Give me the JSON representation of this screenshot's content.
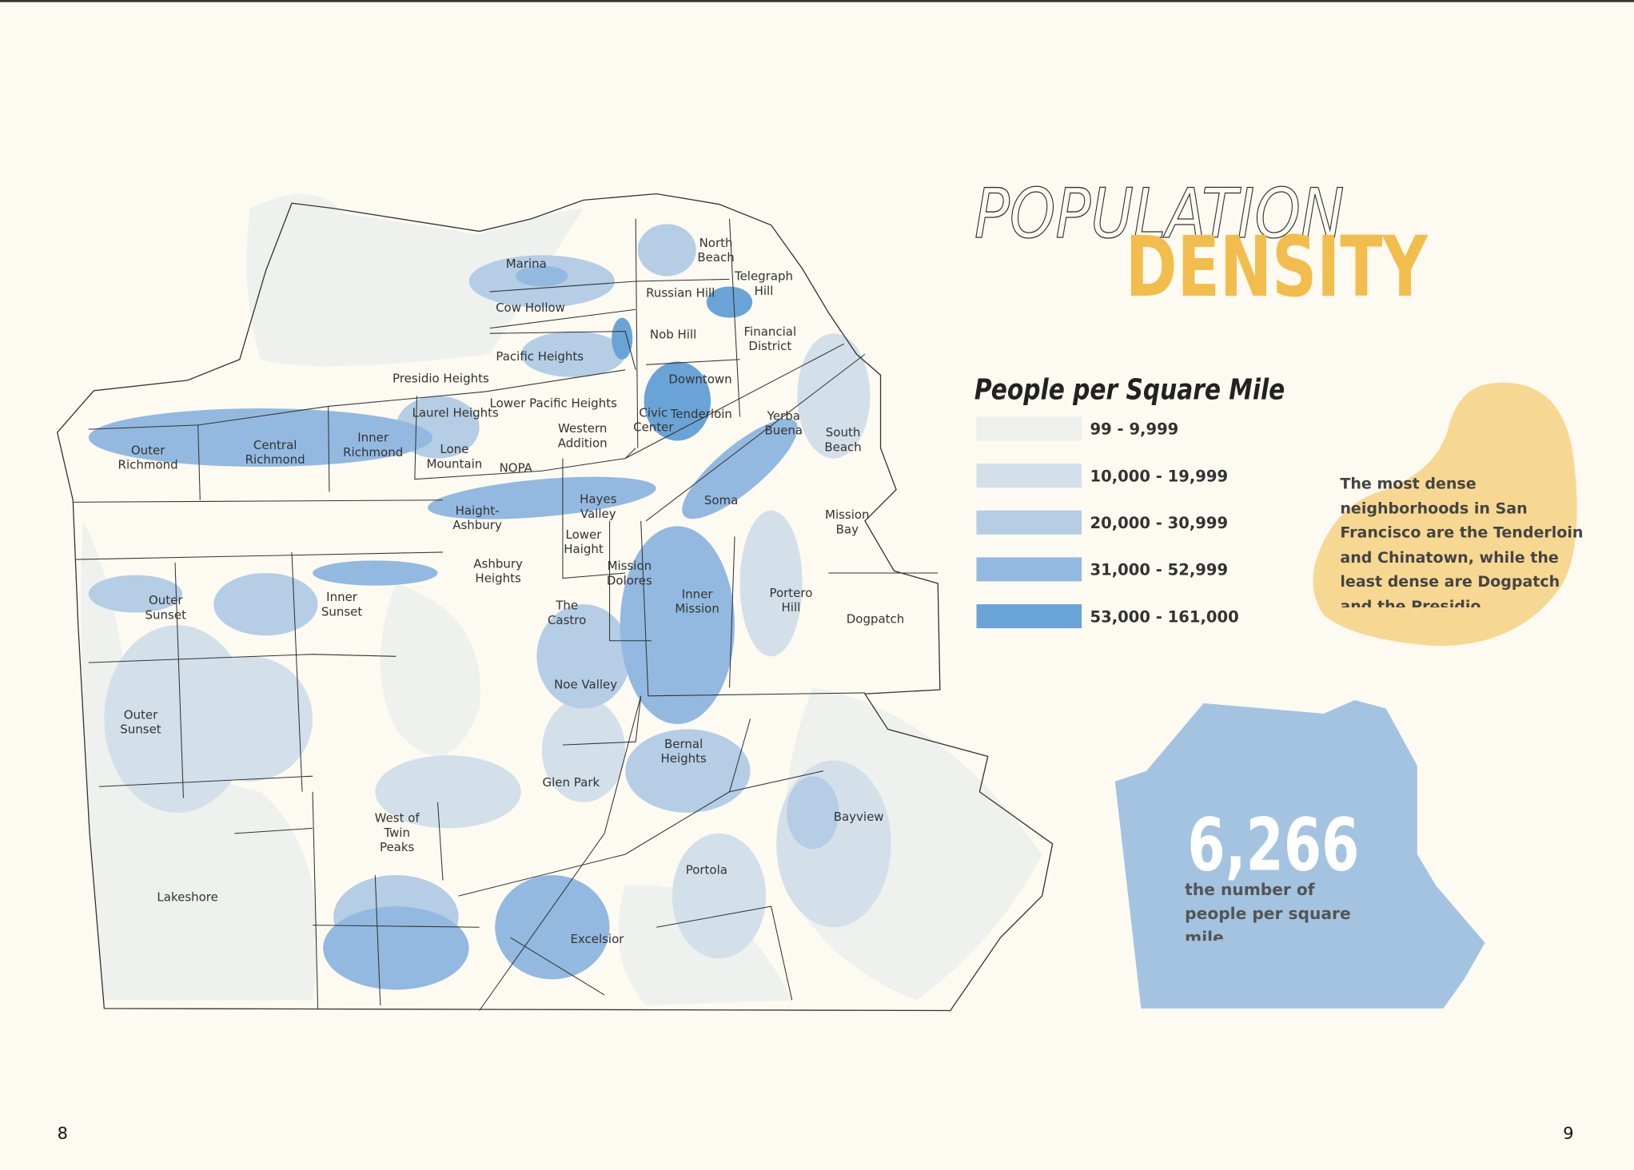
{
  "header": {
    "title_outline": "POPULATION",
    "title_fill": "DENSITY"
  },
  "legend": {
    "title": "People per Square Mile",
    "items": [
      {
        "label": "99 - 9,999",
        "color": "#edf0ec"
      },
      {
        "label": "10,000 - 19,999",
        "color": "#d3e0ea"
      },
      {
        "label": "20,000 - 30,999",
        "color": "#b5cde5"
      },
      {
        "label": "31,000 - 52,999",
        "color": "#93b9e0"
      },
      {
        "label": "53,000 - 161,000",
        "color": "#6aa4d6"
      }
    ]
  },
  "neighborhoods": [
    {
      "lines": [
        "Marina"
      ]
    },
    {
      "lines": [
        "Cow Hollow"
      ]
    },
    {
      "lines": [
        "Pacific Heights"
      ]
    },
    {
      "lines": [
        "Presidio Heights"
      ]
    },
    {
      "lines": [
        "Lower Pacific Heights"
      ]
    },
    {
      "lines": [
        "Laurel Heights"
      ]
    },
    {
      "lines": [
        "Inner",
        "Richmond"
      ]
    },
    {
      "lines": [
        "Central",
        "Richmond"
      ]
    },
    {
      "lines": [
        "Outer",
        "Richmond"
      ]
    },
    {
      "lines": [
        "Lone",
        "Mountain"
      ]
    },
    {
      "lines": [
        "NOPA"
      ]
    },
    {
      "lines": [
        "Western",
        "Addition"
      ]
    },
    {
      "lines": [
        "Civic",
        "Center"
      ]
    },
    {
      "lines": [
        "Tenderloin"
      ]
    },
    {
      "lines": [
        "Downtown"
      ]
    },
    {
      "lines": [
        "Nob Hill"
      ]
    },
    {
      "lines": [
        "Russian Hill"
      ]
    },
    {
      "lines": [
        "North",
        "Beach"
      ]
    },
    {
      "lines": [
        "Telegraph",
        "Hill"
      ]
    },
    {
      "lines": [
        "Financial",
        "District"
      ]
    },
    {
      "lines": [
        "Yerba",
        "Buena"
      ]
    },
    {
      "lines": [
        "South",
        "Beach"
      ]
    },
    {
      "lines": [
        "Soma"
      ]
    },
    {
      "lines": [
        "Mission",
        "Bay"
      ]
    },
    {
      "lines": [
        "Haight-",
        "Ashbury"
      ]
    },
    {
      "lines": [
        "Hayes",
        "Valley"
      ]
    },
    {
      "lines": [
        "Lower",
        "Haight"
      ]
    },
    {
      "lines": [
        "Ashbury",
        "Heights"
      ]
    },
    {
      "lines": [
        "Mission",
        "Dolores"
      ]
    },
    {
      "lines": [
        "The",
        "Castro"
      ]
    },
    {
      "lines": [
        "Inner",
        "Mission"
      ]
    },
    {
      "lines": [
        "Portero",
        "Hill"
      ]
    },
    {
      "lines": [
        "Dogpatch"
      ]
    },
    {
      "lines": [
        "Outer",
        "Sunset"
      ]
    },
    {
      "lines": [
        "Inner",
        "Sunset"
      ]
    },
    {
      "lines": [
        "Outer",
        "Sunset"
      ]
    },
    {
      "lines": [
        "Noe Valley"
      ]
    },
    {
      "lines": [
        "Bernal",
        "Heights"
      ]
    },
    {
      "lines": [
        "Glen Park"
      ]
    },
    {
      "lines": [
        "West of",
        "Twin",
        "Peaks"
      ]
    },
    {
      "lines": [
        "Bayview"
      ]
    },
    {
      "lines": [
        "Lakeshore"
      ]
    },
    {
      "lines": [
        "Portola"
      ]
    },
    {
      "lines": [
        "Excelsior"
      ]
    }
  ],
  "callout": {
    "text": "The most dense neighborhoods in San Francisco are the Tenderloin and Chinatown, while the least dense are Dogpatch and the Presidio."
  },
  "stat": {
    "value": "6,266",
    "caption": "the number of people per square mile"
  },
  "page_numbers": {
    "left": "8",
    "right": "9"
  }
}
